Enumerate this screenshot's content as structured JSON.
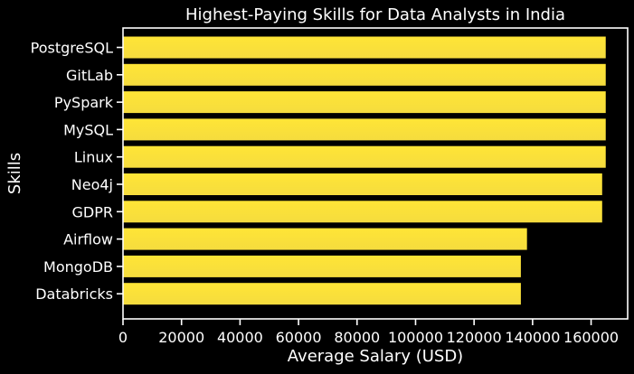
{
  "chart_data": {
    "type": "bar",
    "orientation": "horizontal",
    "title": "Highest-Paying Skills for Data Analysts in India",
    "xlabel": "Average Salary (USD)",
    "ylabel": "Skills",
    "categories": [
      "PostgreSQL",
      "GitLab",
      "PySpark",
      "MySQL",
      "Linux",
      "Neo4j",
      "GDPR",
      "Airflow",
      "MongoDB",
      "Databricks"
    ],
    "values": [
      165000,
      165000,
      165000,
      165000,
      165000,
      163782,
      163782,
      138088,
      135994,
      135994
    ],
    "xlim": [
      0,
      172500
    ],
    "xticks": [
      0,
      20000,
      40000,
      60000,
      80000,
      100000,
      120000,
      140000,
      160000
    ],
    "grid": false,
    "legend": "none",
    "colors": {
      "background": "#000000",
      "bar_top": "#ffe536",
      "bar_bottom": "#f5dc3e",
      "axis": "#ffffff",
      "text": "#ffffff"
    }
  }
}
